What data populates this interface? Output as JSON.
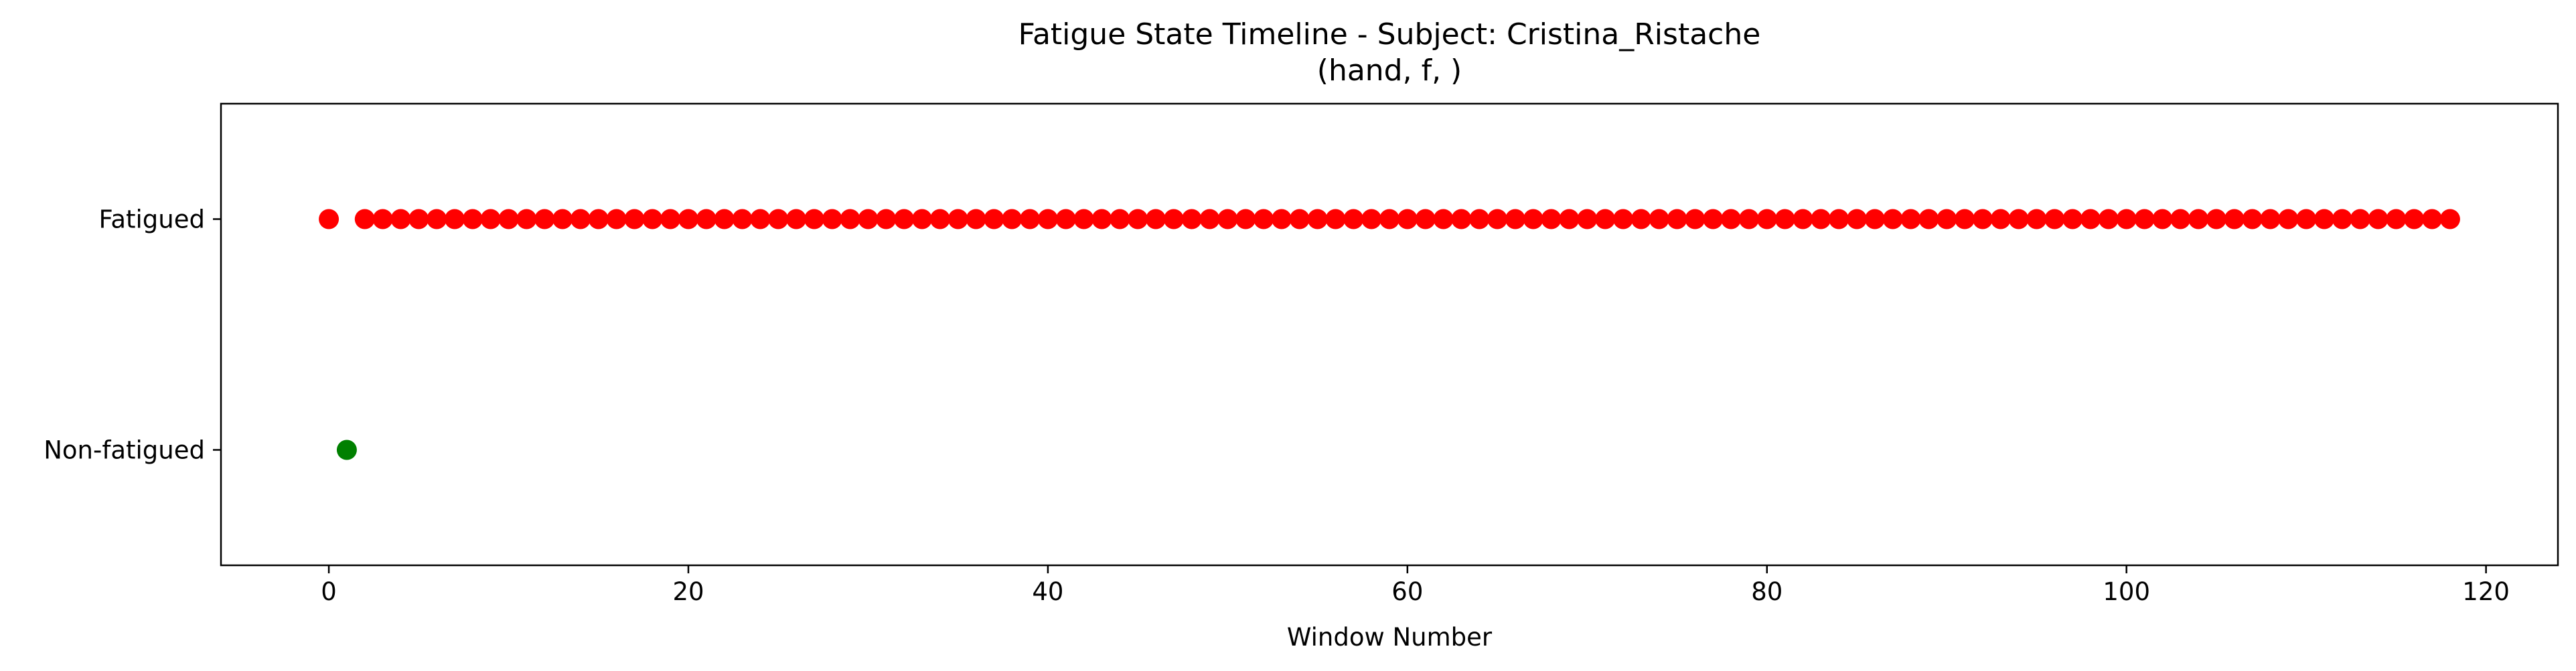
{
  "chart_data": {
    "type": "scatter",
    "title": "Fatigue State Timeline - Subject: Cristina_Ristache",
    "subtitle": "(hand, f, )",
    "xlabel": "Window Number",
    "ylabel": "",
    "xlim": [
      -6,
      124
    ],
    "ylim": [
      -0.5,
      1.5
    ],
    "x_ticks": [
      0,
      20,
      40,
      60,
      80,
      100,
      120
    ],
    "y_ticks": [
      {
        "value": 1,
        "label": "Fatigued"
      },
      {
        "value": 0,
        "label": "Non-fatigued"
      }
    ],
    "grid": false,
    "colors": {
      "fatigued": "#ff0000",
      "non_fatigued": "#008000"
    },
    "points": {
      "x": [
        0,
        1,
        2,
        3,
        4,
        5,
        6,
        7,
        8,
        9,
        10,
        11,
        12,
        13,
        14,
        15,
        16,
        17,
        18,
        19,
        20,
        21,
        22,
        23,
        24,
        25,
        26,
        27,
        28,
        29,
        30,
        31,
        32,
        33,
        34,
        35,
        36,
        37,
        38,
        39,
        40,
        41,
        42,
        43,
        44,
        45,
        46,
        47,
        48,
        49,
        50,
        51,
        52,
        53,
        54,
        55,
        56,
        57,
        58,
        59,
        60,
        61,
        62,
        63,
        64,
        65,
        66,
        67,
        68,
        69,
        70,
        71,
        72,
        73,
        74,
        75,
        76,
        77,
        78,
        79,
        80,
        81,
        82,
        83,
        84,
        85,
        86,
        87,
        88,
        89,
        90,
        91,
        92,
        93,
        94,
        95,
        96,
        97,
        98,
        99,
        100,
        101,
        102,
        103,
        104,
        105,
        106,
        107,
        108,
        109,
        110,
        111,
        112,
        113,
        114,
        115,
        116,
        117,
        118
      ],
      "y": [
        1,
        0,
        1,
        1,
        1,
        1,
        1,
        1,
        1,
        1,
        1,
        1,
        1,
        1,
        1,
        1,
        1,
        1,
        1,
        1,
        1,
        1,
        1,
        1,
        1,
        1,
        1,
        1,
        1,
        1,
        1,
        1,
        1,
        1,
        1,
        1,
        1,
        1,
        1,
        1,
        1,
        1,
        1,
        1,
        1,
        1,
        1,
        1,
        1,
        1,
        1,
        1,
        1,
        1,
        1,
        1,
        1,
        1,
        1,
        1,
        1,
        1,
        1,
        1,
        1,
        1,
        1,
        1,
        1,
        1,
        1,
        1,
        1,
        1,
        1,
        1,
        1,
        1,
        1,
        1,
        1,
        1,
        1,
        1,
        1,
        1,
        1,
        1,
        1,
        1,
        1,
        1,
        1,
        1,
        1,
        1,
        1,
        1,
        1,
        1,
        1,
        1,
        1,
        1,
        1,
        1,
        1,
        1,
        1,
        1,
        1,
        1,
        1,
        1,
        1,
        1,
        1,
        1,
        1
      ]
    }
  }
}
